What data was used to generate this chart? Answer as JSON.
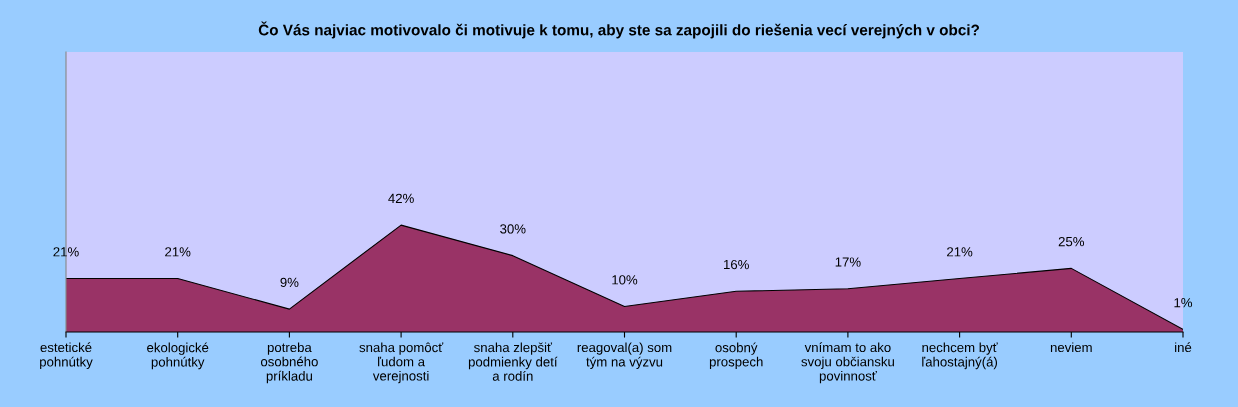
{
  "chart_data": {
    "type": "area",
    "title": "Čo Vás najviac motivovalo či motivuje k tomu, aby ste sa zapojili do riešenia vecí verejných v obci?",
    "categories": [
      "estetické\npohnútky",
      "ekologické\npohnútky",
      "potreba\nosobného\npríkladu",
      "snaha pomôcť\nľudom a\nverejnosti",
      "snaha zlepšiť\npodmienky detí\na rodín",
      "reagoval(a) som\ntým na výzvu",
      "osobný\nprospech",
      "vnímam to ako\nsvoju občiansku\npovinnosť",
      "nechcem byť\nľahostajný(á)",
      "neviem",
      "iné"
    ],
    "series": [
      {
        "color": "#993366",
        "values": [
          21,
          21,
          9,
          42,
          30,
          10,
          16,
          17,
          21,
          25,
          1
        ],
        "value_labels": [
          "21%",
          "21%",
          "9%",
          "42%",
          "30%",
          "10%",
          "16%",
          "17%",
          "21%",
          "25%",
          "1%"
        ]
      }
    ],
    "ylim": [
      0,
      110
    ],
    "tick_labels": "x",
    "grid": false,
    "legend": false
  }
}
